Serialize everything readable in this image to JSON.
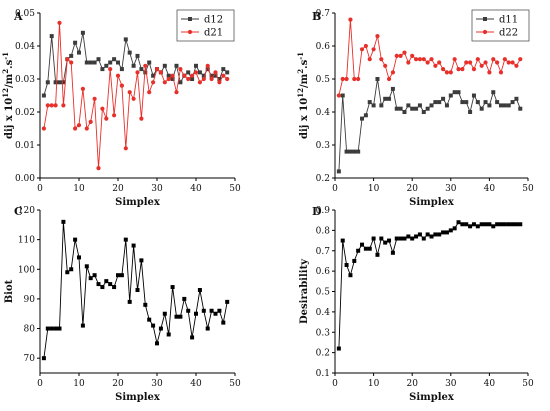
{
  "panels": [
    {
      "letter": "A"
    },
    {
      "letter": "B"
    },
    {
      "letter": "C"
    },
    {
      "letter": "D"
    }
  ],
  "colors": {
    "black_series": "#3c3c3c",
    "red_series": "#e8302a",
    "axis": "#000000"
  },
  "chart_data": [
    {
      "panel": "A",
      "type": "line",
      "xlabel": "Simplex",
      "ylabel": "dij x 10^12/m^2.s^-1",
      "xlim": [
        0,
        50
      ],
      "ylim": [
        0,
        0.05
      ],
      "xticks": [
        0,
        10,
        20,
        30,
        40,
        50
      ],
      "yticks": [
        0,
        0.01,
        0.02,
        0.03,
        0.04,
        0.05
      ],
      "ytick_labels": [
        "0.00",
        "0.01",
        "0.02",
        "0.03",
        "0.04",
        "0.05"
      ],
      "legend": "top-right",
      "series": [
        {
          "name": "d12",
          "marker": "square",
          "color": "#3c3c3c",
          "x": [
            1,
            2,
            3,
            4,
            5,
            6,
            7,
            8,
            9,
            10,
            11,
            12,
            13,
            14,
            15,
            16,
            17,
            18,
            19,
            20,
            21,
            22,
            23,
            24,
            25,
            26,
            27,
            28,
            29,
            30,
            31,
            32,
            33,
            34,
            35,
            36,
            37,
            38,
            39,
            40,
            41,
            42,
            43,
            44,
            45,
            46,
            47,
            48
          ],
          "y": [
            0.025,
            0.029,
            0.043,
            0.029,
            0.029,
            0.029,
            0.036,
            0.037,
            0.041,
            0.038,
            0.044,
            0.035,
            0.035,
            0.035,
            0.036,
            0.033,
            0.034,
            0.035,
            0.036,
            0.035,
            0.033,
            0.042,
            0.038,
            0.034,
            0.037,
            0.033,
            0.032,
            0.035,
            0.031,
            0.033,
            0.032,
            0.034,
            0.031,
            0.03,
            0.034,
            0.029,
            0.031,
            0.032,
            0.03,
            0.034,
            0.032,
            0.031,
            0.033,
            0.031,
            0.031,
            0.03,
            0.033,
            0.032
          ]
        },
        {
          "name": "d21",
          "marker": "circle",
          "color": "#e8302a",
          "x": [
            1,
            2,
            3,
            4,
            5,
            6,
            7,
            8,
            9,
            10,
            11,
            12,
            13,
            14,
            15,
            16,
            17,
            18,
            19,
            20,
            21,
            22,
            23,
            24,
            25,
            26,
            27,
            28,
            29,
            30,
            31,
            32,
            33,
            34,
            35,
            36,
            37,
            38,
            39,
            40,
            41,
            42,
            43,
            44,
            45,
            46,
            47,
            48
          ],
          "y": [
            0.015,
            0.022,
            0.022,
            0.022,
            0.047,
            0.022,
            0.036,
            0.035,
            0.015,
            0.016,
            0.027,
            0.015,
            0.017,
            0.024,
            0.003,
            0.021,
            0.018,
            0.033,
            0.019,
            0.031,
            0.028,
            0.009,
            0.026,
            0.024,
            0.032,
            0.018,
            0.034,
            0.026,
            0.029,
            0.033,
            0.032,
            0.029,
            0.03,
            0.031,
            0.026,
            0.033,
            0.031,
            0.03,
            0.031,
            0.032,
            0.029,
            0.03,
            0.034,
            0.03,
            0.032,
            0.029,
            0.031,
            0.03
          ]
        }
      ]
    },
    {
      "panel": "B",
      "type": "line",
      "xlabel": "Simplex",
      "ylabel": "dij x 10^12/m^2.s^-1",
      "xlim": [
        0,
        50
      ],
      "ylim": [
        0.2,
        0.7
      ],
      "xticks": [
        0,
        10,
        20,
        30,
        40,
        50
      ],
      "yticks": [
        0.2,
        0.3,
        0.4,
        0.5,
        0.6,
        0.7
      ],
      "ytick_labels": [
        "0.2",
        "0.3",
        "0.4",
        "0.5",
        "0.6",
        "0.7"
      ],
      "legend": "top-right",
      "series": [
        {
          "name": "d11",
          "marker": "square",
          "color": "#3c3c3c",
          "x": [
            1,
            2,
            3,
            4,
            5,
            6,
            7,
            8,
            9,
            10,
            11,
            12,
            13,
            14,
            15,
            16,
            17,
            18,
            19,
            20,
            21,
            22,
            23,
            24,
            25,
            26,
            27,
            28,
            29,
            30,
            31,
            32,
            33,
            34,
            35,
            36,
            37,
            38,
            39,
            40,
            41,
            42,
            43,
            44,
            45,
            46,
            47,
            48
          ],
          "y": [
            0.22,
            0.45,
            0.28,
            0.28,
            0.28,
            0.28,
            0.38,
            0.39,
            0.43,
            0.42,
            0.5,
            0.42,
            0.44,
            0.44,
            0.47,
            0.41,
            0.41,
            0.4,
            0.42,
            0.41,
            0.41,
            0.42,
            0.4,
            0.41,
            0.42,
            0.43,
            0.43,
            0.44,
            0.42,
            0.45,
            0.46,
            0.46,
            0.43,
            0.43,
            0.4,
            0.45,
            0.43,
            0.41,
            0.43,
            0.42,
            0.46,
            0.43,
            0.42,
            0.42,
            0.42,
            0.43,
            0.44,
            0.41
          ]
        },
        {
          "name": "d22",
          "marker": "circle",
          "color": "#e8302a",
          "x": [
            1,
            2,
            3,
            4,
            5,
            6,
            7,
            8,
            9,
            10,
            11,
            12,
            13,
            14,
            15,
            16,
            17,
            18,
            19,
            20,
            21,
            22,
            23,
            24,
            25,
            26,
            27,
            28,
            29,
            30,
            31,
            32,
            33,
            34,
            35,
            36,
            37,
            38,
            39,
            40,
            41,
            42,
            43,
            44,
            45,
            46,
            47,
            48
          ],
          "y": [
            0.45,
            0.5,
            0.5,
            0.68,
            0.5,
            0.5,
            0.59,
            0.6,
            0.56,
            0.59,
            0.63,
            0.56,
            0.54,
            0.5,
            0.52,
            0.57,
            0.57,
            0.58,
            0.55,
            0.57,
            0.56,
            0.56,
            0.56,
            0.55,
            0.56,
            0.54,
            0.55,
            0.53,
            0.52,
            0.52,
            0.56,
            0.53,
            0.53,
            0.55,
            0.55,
            0.53,
            0.56,
            0.54,
            0.55,
            0.52,
            0.56,
            0.55,
            0.52,
            0.56,
            0.55,
            0.55,
            0.54,
            0.56
          ]
        }
      ]
    },
    {
      "panel": "C",
      "type": "line",
      "xlabel": "Simplex",
      "ylabel": "Biot",
      "xlim": [
        0,
        50
      ],
      "ylim": [
        65,
        120
      ],
      "xticks": [
        0,
        10,
        20,
        30,
        40,
        50
      ],
      "yticks": [
        70,
        80,
        90,
        100,
        110,
        120
      ],
      "ytick_labels": [
        "70",
        "80",
        "90",
        "100",
        "110",
        "120"
      ],
      "series": [
        {
          "marker": "square",
          "color": "#000000",
          "x": [
            1,
            2,
            3,
            4,
            5,
            6,
            7,
            8,
            9,
            10,
            11,
            12,
            13,
            14,
            15,
            16,
            17,
            18,
            19,
            20,
            21,
            22,
            23,
            24,
            25,
            26,
            27,
            28,
            29,
            30,
            31,
            32,
            33,
            34,
            35,
            36,
            37,
            38,
            39,
            40,
            41,
            42,
            43,
            44,
            45,
            46,
            47,
            48
          ],
          "y": [
            70,
            80,
            80,
            80,
            80,
            116,
            99,
            100,
            110,
            104,
            81,
            101,
            97,
            98,
            95,
            94,
            96,
            95,
            94,
            98,
            98,
            110,
            89,
            108,
            93,
            103,
            88,
            83,
            81,
            75,
            80,
            85,
            78,
            94,
            84,
            84,
            90,
            86,
            77,
            85,
            93,
            86,
            80,
            86,
            85,
            86,
            82,
            89
          ]
        }
      ]
    },
    {
      "panel": "D",
      "type": "line",
      "xlabel": "Simplex",
      "ylabel": "Desirability",
      "xlim": [
        0,
        50
      ],
      "ylim": [
        0.1,
        0.9
      ],
      "xticks": [
        0,
        10,
        20,
        30,
        40,
        50
      ],
      "yticks": [
        0.1,
        0.2,
        0.3,
        0.4,
        0.5,
        0.6,
        0.7,
        0.8,
        0.9
      ],
      "ytick_labels": [
        "0.1",
        "0.2",
        "0.3",
        "0.4",
        "0.5",
        "0.6",
        "0.7",
        "0.8",
        "0.9"
      ],
      "series": [
        {
          "marker": "square",
          "color": "#000000",
          "x": [
            1,
            2,
            3,
            4,
            5,
            6,
            7,
            8,
            9,
            10,
            11,
            12,
            13,
            14,
            15,
            16,
            17,
            18,
            19,
            20,
            21,
            22,
            23,
            24,
            25,
            26,
            27,
            28,
            29,
            30,
            31,
            32,
            33,
            34,
            35,
            36,
            37,
            38,
            39,
            40,
            41,
            42,
            43,
            44,
            45,
            46,
            47,
            48
          ],
          "y": [
            0.22,
            0.75,
            0.63,
            0.58,
            0.65,
            0.7,
            0.73,
            0.71,
            0.71,
            0.76,
            0.68,
            0.76,
            0.74,
            0.75,
            0.69,
            0.76,
            0.76,
            0.76,
            0.77,
            0.76,
            0.77,
            0.78,
            0.76,
            0.78,
            0.77,
            0.78,
            0.78,
            0.79,
            0.79,
            0.8,
            0.81,
            0.84,
            0.83,
            0.83,
            0.82,
            0.83,
            0.82,
            0.83,
            0.83,
            0.83,
            0.82,
            0.83,
            0.83,
            0.83,
            0.83,
            0.83,
            0.83,
            0.83
          ]
        }
      ]
    }
  ]
}
